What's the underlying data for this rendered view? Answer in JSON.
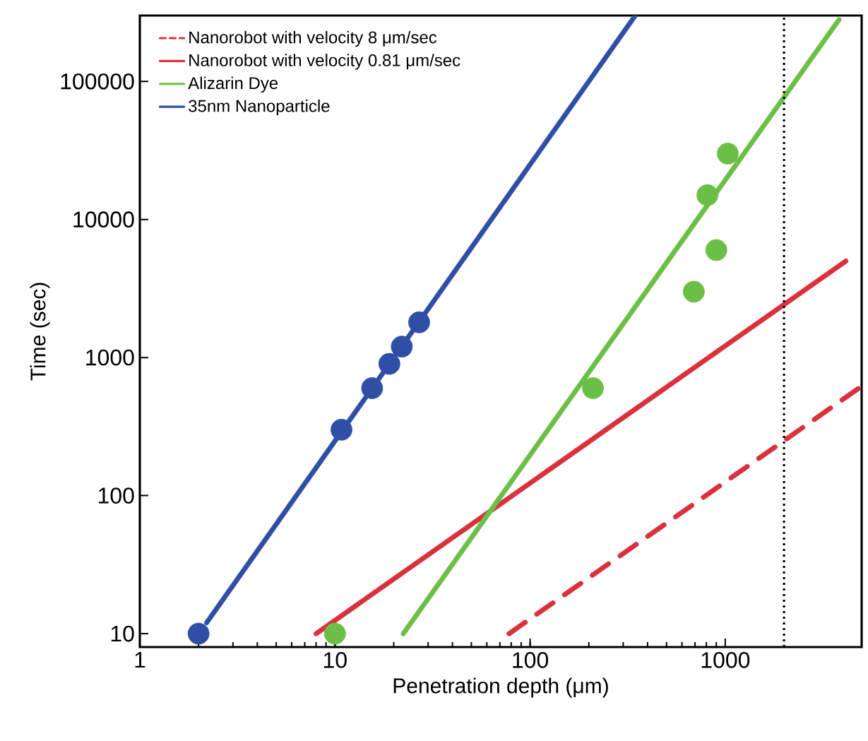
{
  "chart_data": {
    "type": "line",
    "xlabel": "Penetration depth (μm)",
    "ylabel": "Time (sec)",
    "log": "xy",
    "xlim": [
      1,
      5000
    ],
    "ylim": [
      8,
      300000
    ],
    "xticks": [
      1,
      10,
      100,
      1000
    ],
    "yticks": [
      10,
      100,
      1000,
      10000,
      100000
    ],
    "grid": false,
    "legend": "top left",
    "series": [
      {
        "name": "Nanorobot with velocity 8 μm/sec",
        "color": "#d9323c",
        "line_style": "dashed",
        "marker": "none",
        "x": [
          78,
          5000
        ],
        "values": [
          10,
          620
        ]
      },
      {
        "name": "Nanorobot with velocity 0.81 μm/sec",
        "color": "#d9323c",
        "line_style": "solid",
        "marker": "none",
        "x": [
          8,
          4150
        ],
        "values": [
          10,
          5000
        ]
      },
      {
        "name": "Alizarin Dye",
        "color": "#6cbf46",
        "line_style": "solid",
        "marker": "none",
        "x": [
          22.4,
          3830
        ],
        "values": [
          10,
          280000
        ]
      },
      {
        "name": "35nm Nanoparticle",
        "color": "#2f4fa6",
        "line_style": "solid",
        "marker": "none",
        "x": [
          2.2,
          346
        ],
        "values": [
          12,
          300000
        ]
      },
      {
        "type": "scatter",
        "color": "#6cbf46",
        "marker": "circle",
        "x": [
          10,
          210,
          690,
          810,
          900,
          1030
        ],
        "values": [
          10,
          600,
          3000,
          15000,
          6000,
          30000
        ]
      },
      {
        "type": "scatter",
        "color": "#2f4fa6",
        "marker": "circle",
        "x": [
          2,
          10.8,
          15.5,
          19,
          22,
          27
        ],
        "values": [
          10,
          300,
          600,
          900,
          1200,
          1800
        ]
      }
    ],
    "ref_lines": [
      {
        "axis": "x",
        "value": 2000,
        "color": "#000000",
        "line_style": "dotted"
      }
    ]
  }
}
